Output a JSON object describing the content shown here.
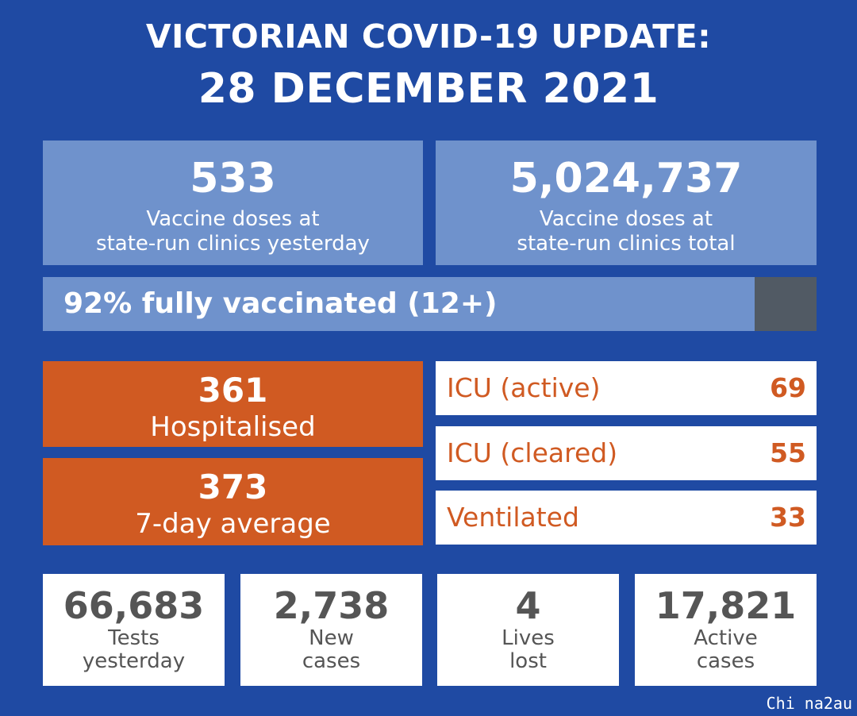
{
  "header": {
    "title_line1": "VICTORIAN COVID-19 UPDATE:",
    "title_line2": "28 DECEMBER 2021"
  },
  "vaccines": {
    "yesterday": {
      "value": "533",
      "label_line1": "Vaccine doses at",
      "label_line2": "state-run clinics yesterday"
    },
    "total": {
      "value": "5,024,737",
      "label_line1": "Vaccine doses at",
      "label_line2": "state-run clinics total"
    }
  },
  "vaccination_rate": {
    "text": "92% fully vaccinated (12+)",
    "percent": 92
  },
  "hospital": {
    "hospitalised": {
      "value": "361",
      "label": "Hospitalised"
    },
    "average": {
      "value": "373",
      "label": "7-day average"
    }
  },
  "icu_rows": [
    {
      "label": "ICU (active)",
      "value": "69"
    },
    {
      "label": "ICU (cleared)",
      "value": "55"
    },
    {
      "label": "Ventilated",
      "value": "33"
    }
  ],
  "stats": [
    {
      "value": "66,683",
      "label_line1": "Tests",
      "label_line2": "yesterday"
    },
    {
      "value": "2,738",
      "label_line1": "New",
      "label_line2": "cases"
    },
    {
      "value": "4",
      "label_line1": "Lives",
      "label_line2": "lost"
    },
    {
      "value": "17,821",
      "label_line1": "Active",
      "label_line2": "cases"
    }
  ],
  "credit": "Chi na2au",
  "colors": {
    "background": "#1f4aa3",
    "light_blue": "#6f92cc",
    "orange": "#d05a22",
    "grey": "#515a64",
    "stat_text": "#555555"
  }
}
